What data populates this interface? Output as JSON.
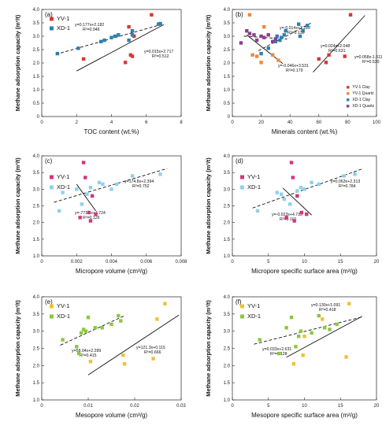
{
  "chart_data": [
    {
      "type": "scatter",
      "panel_label": "(a)",
      "xlabel": "TOC content (wt.%)",
      "ylabel": "Methane adsorption capacity (m³/t)",
      "xlim": [
        0,
        8
      ],
      "ylim": [
        0,
        4.0
      ],
      "xticks": [
        "0",
        "2",
        "4",
        "6",
        "8"
      ],
      "yticks": [
        "0",
        "0.5",
        "1.0",
        "1.5",
        "2.0",
        "2.5",
        "3.0",
        "3.5",
        "4.0"
      ],
      "legend_position": "top-left",
      "series": [
        {
          "name": "YV-1",
          "color": "#d43a35",
          "marker": "square",
          "x": [
            2.4,
            4.8,
            5.1,
            5.2,
            5.3,
            6.3,
            5.0
          ],
          "y": [
            2.15,
            2.02,
            2.3,
            2.25,
            3.0,
            3.8,
            3.35
          ]
        },
        {
          "name": "XD-1",
          "color": "#2e7fb1",
          "marker": "square",
          "x": [
            0.9,
            2.1,
            3.4,
            3.6,
            4.0,
            4.2,
            4.4,
            5.0,
            5.2,
            5.2,
            6.7,
            6.8
          ],
          "y": [
            2.35,
            2.55,
            2.8,
            2.85,
            2.95,
            3.0,
            3.05,
            2.85,
            3.2,
            3.05,
            3.45,
            3.47
          ]
        }
      ],
      "fits": [
        {
          "series": "XD-1",
          "style": "dashed",
          "x": [
            0.8,
            7.0
          ],
          "equation": "y=0.177x+2.182",
          "r2": "R²=0.946"
        },
        {
          "series": "YV-1",
          "style": "solid",
          "x": [
            2.0,
            7.0
          ],
          "equation": "y=0.015x+2.717",
          "r2": "R²=0.512"
        }
      ]
    },
    {
      "type": "scatter",
      "panel_label": "(b)",
      "xlabel": "Minerals content (wt.%)",
      "ylabel": "Methane adsorption capacity (m³/t)",
      "xlim": [
        0,
        100
      ],
      "ylim": [
        0,
        4.0
      ],
      "xticks": [
        "0",
        "20",
        "40",
        "60",
        "80",
        "100"
      ],
      "yticks": [
        "0",
        "0.5",
        "1.0",
        "1.5",
        "2.0",
        "2.5",
        "3.0",
        "3.5",
        "4.0"
      ],
      "legend_position": "bottom-right",
      "series": [
        {
          "name": "YV-1 Clay",
          "color": "#d43a35",
          "marker": "square",
          "x": [
            60,
            65,
            67,
            78,
            82
          ],
          "y": [
            2.15,
            2.02,
            2.3,
            2.25,
            3.8
          ]
        },
        {
          "name": "YV-1 Quartz",
          "color": "#ee8a3a",
          "marker": "square",
          "x": [
            12,
            14,
            17,
            20,
            22,
            28,
            32
          ],
          "y": [
            3.8,
            2.3,
            2.25,
            2.02,
            3.35,
            2.3,
            2.1
          ]
        },
        {
          "name": "XD-1 Clay",
          "color": "#2e7fb1",
          "marker": "square",
          "x": [
            20,
            25,
            30,
            31,
            33,
            34,
            36,
            37,
            46,
            47,
            49,
            52
          ],
          "y": [
            2.35,
            2.55,
            2.8,
            3.0,
            2.85,
            2.95,
            3.05,
            3.2,
            3.45,
            3.0,
            3.2,
            3.4
          ]
        },
        {
          "name": "XD-1 Quartz",
          "color": "#8b3f8e",
          "marker": "square",
          "x": [
            6,
            10,
            12,
            15,
            17,
            20,
            22,
            25,
            28,
            30
          ],
          "y": [
            2.75,
            3.2,
            3.1,
            3.05,
            2.85,
            3.0,
            2.95,
            3.05,
            2.8,
            2.9
          ]
        }
      ],
      "fits": [
        {
          "series": "XD-1 Quartz",
          "style": "dashed",
          "x": [
            8,
            38
          ],
          "equation": "y=-0.014x+3.228",
          "r2": "R²=0.130"
        },
        {
          "series": "YV-1 Quartz",
          "style": "solid",
          "x": [
            10,
            35
          ],
          "equation": "y=-0.046x+3.531",
          "r2": "R²=0.179"
        },
        {
          "series": "XD-1 Clay",
          "style": "dashed",
          "x": [
            18,
            55
          ],
          "equation": "y=0.024x+2.048",
          "r2": "R²=0.631"
        },
        {
          "series": "YV-1 Clay",
          "style": "solid",
          "x": [
            56,
            92
          ],
          "equation": "y=0.058x-1.611",
          "r2": "R²=0.530"
        }
      ]
    },
    {
      "type": "scatter",
      "panel_label": "(c)",
      "xlabel": "Micropore volume (cm³/g)",
      "ylabel": "Methane adsorption capacity (m³/t)",
      "xlim": [
        0,
        0.008
      ],
      "ylim": [
        1.0,
        4.0
      ],
      "xticks": [
        "0",
        "0.002",
        "0.004",
        "0.006",
        "0.008"
      ],
      "yticks": [
        "1.0",
        "1.5",
        "2.0",
        "2.5",
        "3.0",
        "3.5",
        "4.0"
      ],
      "legend_position": "top-left",
      "series": [
        {
          "name": "YV-1",
          "color": "#d3357c",
          "marker": "square",
          "x": [
            0.0022,
            0.0024,
            0.0025,
            0.0027,
            0.0028,
            0.0029,
            0.0031
          ],
          "y": [
            2.15,
            3.8,
            3.35,
            2.3,
            2.05,
            2.8,
            2.25
          ]
        },
        {
          "name": "XD-1",
          "color": "#8fd0ee",
          "marker": "square",
          "x": [
            0.001,
            0.0012,
            0.002,
            0.0023,
            0.0026,
            0.0028,
            0.0033,
            0.0035,
            0.004,
            0.0043,
            0.0052,
            0.0068
          ],
          "y": [
            2.35,
            2.9,
            3.0,
            2.55,
            2.85,
            3.05,
            3.2,
            3.15,
            3.0,
            3.15,
            3.4,
            3.45
          ]
        }
      ],
      "fits": [
        {
          "series": "XD-1",
          "style": "dashed",
          "x": [
            0.0007,
            0.0072
          ],
          "equation": "y=174.8x+2.394",
          "r2": "R²=0.752"
        },
        {
          "series": "YV-1",
          "style": "solid",
          "x": [
            0.002,
            0.0031
          ],
          "equation": "y=-771.4x+4.724",
          "r2": "R²=0.126"
        }
      ]
    },
    {
      "type": "scatter",
      "panel_label": "(d)",
      "xlabel": "Micropore specific surface area (m²/g)",
      "ylabel": "Methane adsorption capacity (m³/t)",
      "xlim": [
        0,
        20
      ],
      "ylim": [
        1.0,
        4.0
      ],
      "xticks": [
        "0",
        "5",
        "10",
        "15",
        "20"
      ],
      "yticks": [
        "1.0",
        "1.5",
        "2.0",
        "2.5",
        "3.0",
        "3.5",
        "4.0"
      ],
      "legend_position": "top-left",
      "series": [
        {
          "name": "YV-1",
          "color": "#d3357c",
          "marker": "square",
          "x": [
            7.5,
            8.2,
            8.4,
            8.6,
            9.0,
            9.6,
            10.3
          ],
          "y": [
            2.15,
            3.8,
            3.35,
            2.05,
            2.8,
            2.3,
            2.25
          ]
        },
        {
          "name": "XD-1",
          "color": "#8fd0ee",
          "marker": "square",
          "x": [
            3.5,
            6.2,
            6.8,
            7.2,
            8.0,
            9.0,
            9.5,
            10.0,
            11.0,
            12.0,
            15.5,
            17.0
          ],
          "y": [
            2.35,
            2.9,
            2.85,
            2.7,
            2.55,
            2.95,
            3.05,
            3.0,
            3.2,
            3.15,
            3.4,
            3.45
          ]
        }
      ],
      "fits": [
        {
          "series": "XD-1",
          "style": "dashed",
          "x": [
            2.8,
            18.0
          ],
          "equation": "y=0.063x+2.313",
          "r2": "R²=0.784"
        },
        {
          "series": "YV-1",
          "style": "solid",
          "x": [
            7.0,
            11.0
          ],
          "equation": "y=-0.023x+4.733",
          "r2": "R²=0.101"
        }
      ]
    },
    {
      "type": "scatter",
      "panel_label": "(e)",
      "xlabel": "Mesopore volume (cm³/g)",
      "ylabel": "Methane adsorption capacity (m³/t)",
      "xlim": [
        0,
        0.03
      ],
      "ylim": [
        1.0,
        4.0
      ],
      "xticks": [
        "0",
        "0.01",
        "0.02",
        "0.03"
      ],
      "yticks": [
        "1.0",
        "1.5",
        "2.0",
        "2.5",
        "3.0",
        "3.5",
        "4.0"
      ],
      "legend_position": "top-left",
      "series": [
        {
          "name": "YV-1",
          "color": "#f2c12e",
          "marker": "square",
          "x": [
            0.0105,
            0.0175,
            0.0178,
            0.024,
            0.0248,
            0.0265
          ],
          "y": [
            2.12,
            2.3,
            2.05,
            2.2,
            3.35,
            3.8
          ]
        },
        {
          "name": "XD-1",
          "color": "#8cc63f",
          "marker": "square",
          "x": [
            0.0045,
            0.0075,
            0.008,
            0.0085,
            0.009,
            0.0095,
            0.01,
            0.0115,
            0.013,
            0.015,
            0.0165,
            0.017
          ],
          "y": [
            2.75,
            2.55,
            2.35,
            2.95,
            3.05,
            3.0,
            3.4,
            3.1,
            3.1,
            3.2,
            3.45,
            3.3
          ]
        }
      ],
      "fits": [
        {
          "series": "XD-1",
          "style": "dashed",
          "x": [
            0.004,
            0.018
          ],
          "equation": "y=58.04x+2.289",
          "r2": "R²=0.415"
        },
        {
          "series": "YV-1",
          "style": "solid",
          "x": [
            0.01,
            0.0295
          ],
          "equation": "y=121.3x+0.115",
          "r2": "R²=0.666"
        }
      ]
    },
    {
      "type": "scatter",
      "panel_label": "(f)",
      "xlabel": "Mesopore specific surface area (m²/g)",
      "ylabel": "Methane adsorption capacity (m³/t)",
      "xlim": [
        0,
        20
      ],
      "ylim": [
        1.0,
        4.0
      ],
      "xticks": [
        "0",
        "5",
        "10",
        "15",
        "20"
      ],
      "yticks": [
        "1.0",
        "1.5",
        "2.0",
        "2.5",
        "3.0",
        "3.5",
        "4.0"
      ],
      "legend_position": "top-left",
      "series": [
        {
          "name": "YV-1",
          "color": "#f2c12e",
          "marker": "square",
          "x": [
            8.5,
            9.8,
            10.0,
            12.5,
            15.8,
            16.2
          ],
          "y": [
            2.05,
            2.3,
            2.85,
            3.35,
            2.25,
            3.8
          ]
        },
        {
          "name": "XD-1",
          "color": "#8cc63f",
          "marker": "square",
          "x": [
            3.8,
            6.5,
            7.5,
            8.2,
            8.8,
            9.2,
            9.5,
            11.0,
            12.0,
            12.8,
            13.5,
            14.5
          ],
          "y": [
            2.75,
            2.35,
            3.1,
            3.4,
            2.55,
            2.85,
            3.0,
            2.95,
            3.45,
            3.1,
            3.05,
            3.2
          ]
        }
      ],
      "fits": [
        {
          "series": "YV-1",
          "style": "solid",
          "x": [
            7.5,
            18.0
          ],
          "equation": "y=0.130x+1.091",
          "r2": "R²=0.418"
        },
        {
          "series": "XD-1",
          "style": "dashed",
          "x": [
            3.0,
            18.0
          ],
          "equation": "y=0.033x+2.631",
          "r2": "R²=0.128"
        }
      ]
    }
  ]
}
